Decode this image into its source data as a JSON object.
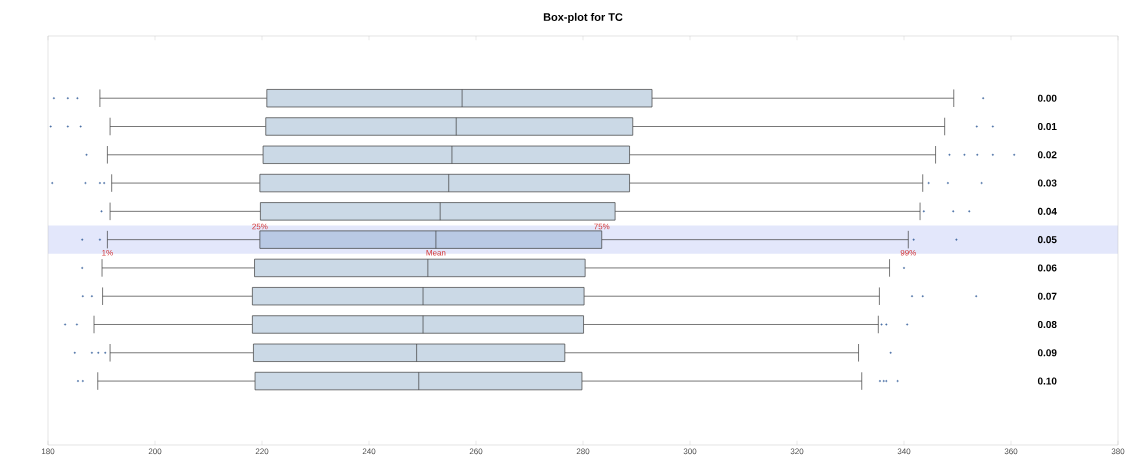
{
  "chart_data": {
    "type": "box",
    "orientation": "horizontal",
    "title": "Box-plot  for TC",
    "categories": [
      "0.00",
      "0.01",
      "0.02",
      "0.03",
      "0.04",
      "0.05",
      "0.06",
      "0.07",
      "0.08",
      "0.09",
      "0.10"
    ],
    "colors": [
      "#cbd9e6",
      "#cbd9e6",
      "#cbd9e6",
      "#cbd9e6",
      "#cbd9e6",
      "#b9c9e4",
      "#cbd9e6",
      "#cbd9e6",
      "#cbd9e6",
      "#cbd9e6",
      "#cbd9e6"
    ],
    "boxes": [
      {
        "low": 189.7,
        "q1": 220.9,
        "median": 257.4,
        "q3": 292.9,
        "high": 349.3,
        "outliers": [
          181.1,
          183.7,
          185.5,
          354.8
        ]
      },
      {
        "low": 191.6,
        "q1": 220.7,
        "median": 256.3,
        "q3": 289.3,
        "high": 347.6,
        "outliers": [
          180.5,
          183.7,
          186.1,
          353.6,
          356.6
        ]
      },
      {
        "low": 191.1,
        "q1": 220.2,
        "median": 255.5,
        "q3": 288.7,
        "high": 345.9,
        "outliers": [
          187.2,
          348.5,
          351.3,
          353.7,
          356.6,
          360.6
        ]
      },
      {
        "low": 191.9,
        "q1": 219.6,
        "median": 254.9,
        "q3": 288.7,
        "high": 343.5,
        "outliers": [
          180.8,
          187.0,
          189.7,
          190.5,
          344.6,
          348.2,
          354.5
        ]
      },
      {
        "low": 191.6,
        "q1": 219.7,
        "median": 253.3,
        "q3": 286.0,
        "high": 343.0,
        "outliers": [
          190.0,
          343.7,
          349.2,
          352.2
        ]
      },
      {
        "low": 191.1,
        "q1": 219.6,
        "median": 252.5,
        "q3": 283.5,
        "high": 340.8,
        "outliers": [
          186.4,
          189.7,
          341.8,
          349.8
        ]
      },
      {
        "low": 190.1,
        "q1": 218.6,
        "median": 251.0,
        "q3": 280.4,
        "high": 337.3,
        "outliers": [
          186.4,
          340.0
        ]
      },
      {
        "low": 190.2,
        "q1": 218.2,
        "median": 250.1,
        "q3": 280.2,
        "high": 335.4,
        "outliers": [
          186.5,
          188.2,
          341.5,
          343.5,
          353.5
        ]
      },
      {
        "low": 188.6,
        "q1": 218.2,
        "median": 250.1,
        "q3": 280.1,
        "high": 335.2,
        "outliers": [
          183.2,
          185.4,
          335.8,
          336.7,
          340.6
        ]
      },
      {
        "low": 191.6,
        "q1": 218.4,
        "median": 248.9,
        "q3": 276.6,
        "high": 331.5,
        "outliers": [
          185.0,
          188.2,
          189.4,
          190.7,
          337.5
        ]
      },
      {
        "low": 189.3,
        "q1": 218.7,
        "median": 249.3,
        "q3": 279.8,
        "high": 332.1,
        "outliers": [
          185.6,
          186.5,
          335.5,
          336.2,
          336.7,
          338.8
        ]
      }
    ],
    "xlim": [
      180,
      380
    ],
    "xticks": [
      180,
      200,
      220,
      240,
      260,
      280,
      300,
      320,
      340,
      360,
      380
    ],
    "bands": [
      {
        "axis": "y",
        "from": "0.05",
        "to": "0.05",
        "color": "#e3e7fb"
      }
    ],
    "annotations": [
      {
        "text": "1%",
        "x": 191.1,
        "y": "0.05"
      },
      {
        "text": "25%",
        "x": 219.6,
        "y": "0.05"
      },
      {
        "text": "Mean",
        "x": 252.5,
        "y": "0.05"
      },
      {
        "text": "75%",
        "x": 283.5,
        "y": "0.05"
      },
      {
        "text": "99%",
        "x": 340.8,
        "y": "0.05"
      }
    ],
    "grid": false
  }
}
